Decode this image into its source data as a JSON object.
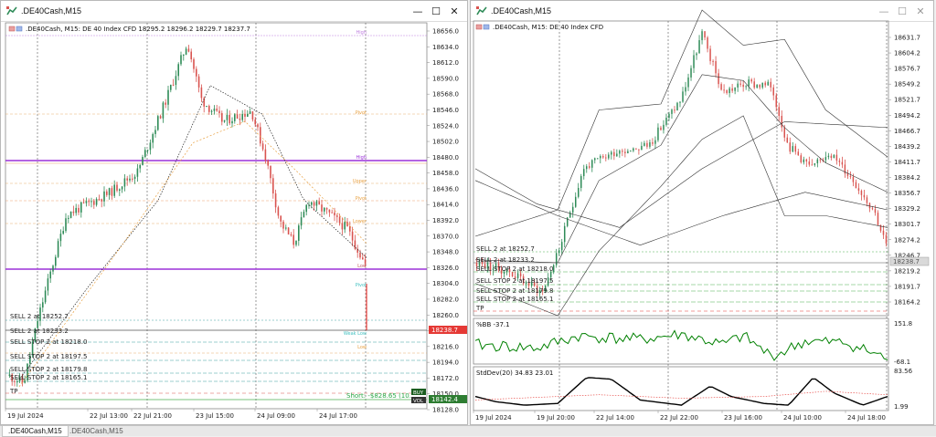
{
  "left_window": {
    "title": ".DE40Cash,M15",
    "chart_info": ".DE40Cash, M15:  DE 40 Index CFD  18295.2 18296.2 18229.7 18237.7",
    "price_labels": [
      "18656.0",
      "18634.0",
      "18612.0",
      "18590.0",
      "18568.0",
      "18546.0",
      "18524.0",
      "18502.0",
      "18480.0",
      "18458.0",
      "18436.0",
      "18414.0",
      "18392.0",
      "18370.0",
      "18348.0",
      "18326.0",
      "18304.0",
      "18282.0",
      "18260.0",
      "18238.0",
      "18216.0",
      "18194.0",
      "18172.0",
      "18150.0",
      "18128.0"
    ],
    "time_labels": [
      "19 Jul 2024",
      "22 Jul 13:00",
      "22 Jul 21:00",
      "23 Jul 15:00",
      "24 Jul 09:00",
      "24 Jul 17:00"
    ],
    "orders": [
      "SELL 2 at 18252.7",
      "SELL 2 at 18233.2",
      "SELL STOP 2 at 18218.0",
      "SELL STOP 2 at 18197.5",
      "SELL STOP 2 at 18179.8",
      "SELL STOP 2 at 18165.1",
      "TP"
    ],
    "level_tags": [
      "High",
      "Pivot",
      "High",
      "Upper",
      "Pivot",
      "Lower",
      "Low",
      "Pivot",
      "Weak Low",
      "Low"
    ],
    "current_price": "18238.7",
    "short_label": "Short: -$828.65 (10...",
    "bid_tag": "18142.4",
    "badge_buy": "BUY",
    "badge_vol": "VOL"
  },
  "right_window": {
    "title": ".DE40Cash,M15",
    "chart_info": ".DE40Cash, M15:  DE 40 Index CFD",
    "price_labels": [
      "18631.7",
      "18604.2",
      "18576.7",
      "18549.2",
      "18521.7",
      "18494.2",
      "18466.7",
      "18439.2",
      "18411.7",
      "18384.2",
      "18356.7",
      "18329.2",
      "18301.7",
      "18274.2",
      "18246.7",
      "18219.2",
      "18191.7",
      "18164.2"
    ],
    "time_labels": [
      "19 Jul 2024",
      "19 Jul 20:00",
      "22 Jul 14:00",
      "22 Jul 22:00",
      "23 Jul 16:00",
      "24 Jul 10:00",
      "24 Jul 18:00"
    ],
    "orders": [
      "SELL 2 at 18252.7",
      "SELL 2 at 18233.2",
      "SELL STOP 2 at 18218.0",
      "SELL STOP 2 at 18197.5",
      "SELL STOP 2 at 18179.8",
      "SELL STOP 2 at 18165.1",
      "TP"
    ],
    "current_price": "18238.7",
    "bb_label": "%BB -37.1",
    "bb_scale_top": "151.8",
    "bb_scale_bottom": "-68.1",
    "std_label": "StdDev(20) 34.83 23.01",
    "std_scale_top": "83.56",
    "std_scale_bottom": "1.99"
  },
  "tabs": [
    ".DE40Cash,M15",
    ".DE40Cash,M15"
  ],
  "colors": {
    "bull": "#2e8b57",
    "bear": "#d9534f",
    "purple": "#9b30d9",
    "indicator": "#008000"
  }
}
